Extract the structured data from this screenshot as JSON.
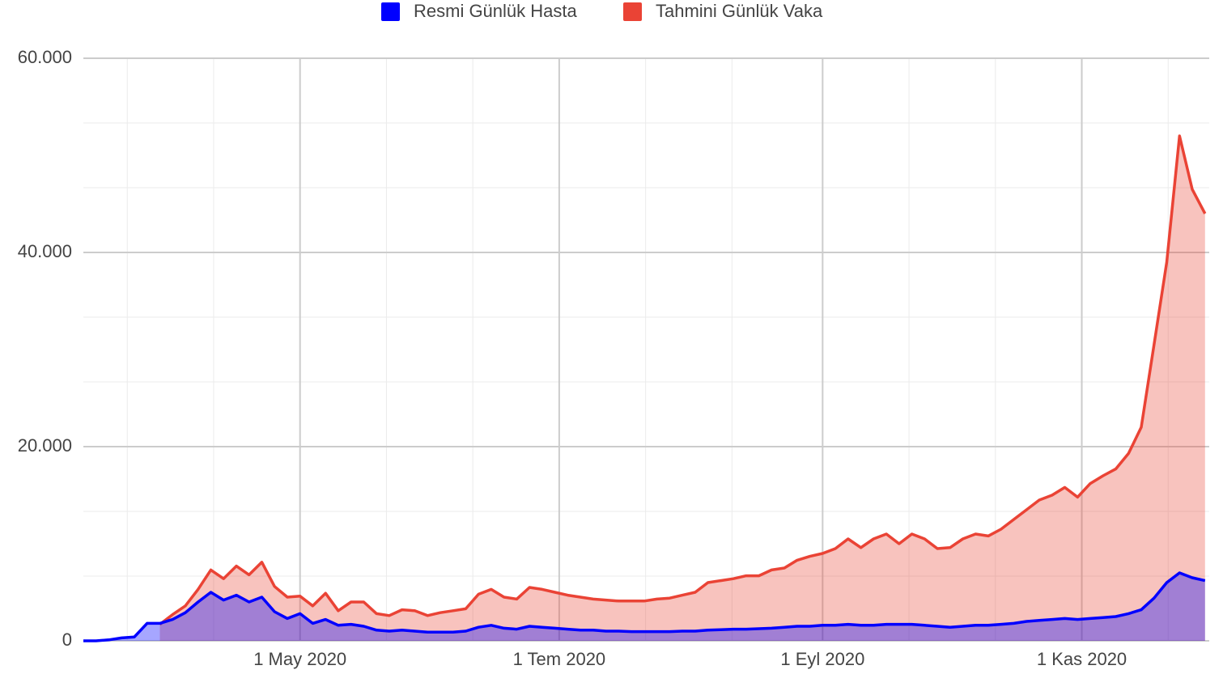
{
  "chart_data": {
    "type": "area",
    "x": [
      "2020-03-11",
      "2020-03-14",
      "2020-03-17",
      "2020-03-20",
      "2020-03-23",
      "2020-03-26",
      "2020-03-29",
      "2020-04-01",
      "2020-04-04",
      "2020-04-07",
      "2020-04-10",
      "2020-04-13",
      "2020-04-16",
      "2020-04-19",
      "2020-04-22",
      "2020-04-25",
      "2020-04-28",
      "2020-05-01",
      "2020-05-04",
      "2020-05-07",
      "2020-05-10",
      "2020-05-13",
      "2020-05-16",
      "2020-05-19",
      "2020-05-22",
      "2020-05-25",
      "2020-05-28",
      "2020-05-31",
      "2020-06-03",
      "2020-06-06",
      "2020-06-09",
      "2020-06-12",
      "2020-06-15",
      "2020-06-18",
      "2020-06-21",
      "2020-06-24",
      "2020-06-27",
      "2020-06-30",
      "2020-07-03",
      "2020-07-06",
      "2020-07-09",
      "2020-07-12",
      "2020-07-15",
      "2020-07-18",
      "2020-07-21",
      "2020-07-24",
      "2020-07-27",
      "2020-07-30",
      "2020-08-02",
      "2020-08-05",
      "2020-08-08",
      "2020-08-11",
      "2020-08-14",
      "2020-08-17",
      "2020-08-20",
      "2020-08-23",
      "2020-08-26",
      "2020-08-29",
      "2020-09-01",
      "2020-09-04",
      "2020-09-07",
      "2020-09-10",
      "2020-09-13",
      "2020-09-16",
      "2020-09-19",
      "2020-09-22",
      "2020-09-25",
      "2020-09-28",
      "2020-10-01",
      "2020-10-04",
      "2020-10-07",
      "2020-10-10",
      "2020-10-13",
      "2020-10-16",
      "2020-10-19",
      "2020-10-22",
      "2020-10-25",
      "2020-10-28",
      "2020-10-31",
      "2020-11-03",
      "2020-11-06",
      "2020-11-09",
      "2020-11-12",
      "2020-11-15",
      "2020-11-18",
      "2020-11-21",
      "2020-11-24",
      "2020-11-27",
      "2020-11-30"
    ],
    "series": [
      {
        "name": "Tahmini Günlük Vaka",
        "color": "#ea4335",
        "values": [
          null,
          null,
          null,
          null,
          null,
          null,
          1700,
          2700,
          3600,
          5300,
          7300,
          6400,
          7700,
          6800,
          8100,
          5600,
          4500,
          4600,
          3600,
          4900,
          3100,
          4000,
          4000,
          2800,
          2600,
          3200,
          3100,
          2600,
          2900,
          3100,
          3300,
          4800,
          5300,
          4500,
          4300,
          5500,
          5300,
          5000,
          4700,
          4500,
          4300,
          4200,
          4100,
          4100,
          4100,
          4300,
          4400,
          4700,
          5000,
          6000,
          6200,
          6400,
          6700,
          6700,
          7300,
          7500,
          8300,
          8700,
          9000,
          9500,
          10500,
          9600,
          10500,
          11000,
          10000,
          11000,
          10500,
          9500,
          9600,
          10500,
          11000,
          10800,
          11500,
          12500,
          13500,
          14500,
          15000,
          15800,
          14800,
          16200,
          17000,
          17700,
          19300,
          22000,
          30500,
          39000,
          52000,
          46500,
          44000
        ]
      },
      {
        "name": "Resmi Günlük Hasta",
        "color": "#0000ff",
        "values": [
          0,
          0,
          100,
          300,
          400,
          1800,
          1800,
          2200,
          2900,
          4000,
          5000,
          4200,
          4700,
          4000,
          4500,
          3000,
          2300,
          2800,
          1800,
          2200,
          1600,
          1700,
          1500,
          1100,
          1000,
          1100,
          1000,
          900,
          900,
          900,
          1000,
          1400,
          1600,
          1300,
          1200,
          1500,
          1400,
          1300,
          1200,
          1100,
          1100,
          1000,
          1000,
          950,
          950,
          950,
          950,
          1000,
          1000,
          1100,
          1150,
          1200,
          1200,
          1250,
          1300,
          1400,
          1500,
          1500,
          1600,
          1600,
          1700,
          1600,
          1600,
          1700,
          1700,
          1700,
          1600,
          1500,
          1400,
          1500,
          1600,
          1600,
          1700,
          1800,
          2000,
          2100,
          2200,
          2300,
          2200,
          2300,
          2400,
          2500,
          2800,
          3200,
          4400,
          6000,
          7000,
          6500,
          6200
        ]
      }
    ],
    "legend_order": [
      1,
      0
    ],
    "xlim": [
      "2020-03-11",
      "2020-12-01"
    ],
    "xticks": [
      {
        "value": "2020-05-01",
        "label": "1 May 2020"
      },
      {
        "value": "2020-07-01",
        "label": "1 Tem 2020"
      },
      {
        "value": "2020-09-01",
        "label": "1 Eyl 2020"
      },
      {
        "value": "2020-11-01",
        "label": "1 Kas 2020"
      }
    ],
    "ylim": [
      0,
      60000
    ],
    "yticks": [
      0,
      {
        "value": 20000,
        "label": "20.000"
      },
      {
        "value": 40000,
        "label": "40.000"
      },
      {
        "value": 60000,
        "label": "60.000"
      }
    ],
    "grid": true
  }
}
